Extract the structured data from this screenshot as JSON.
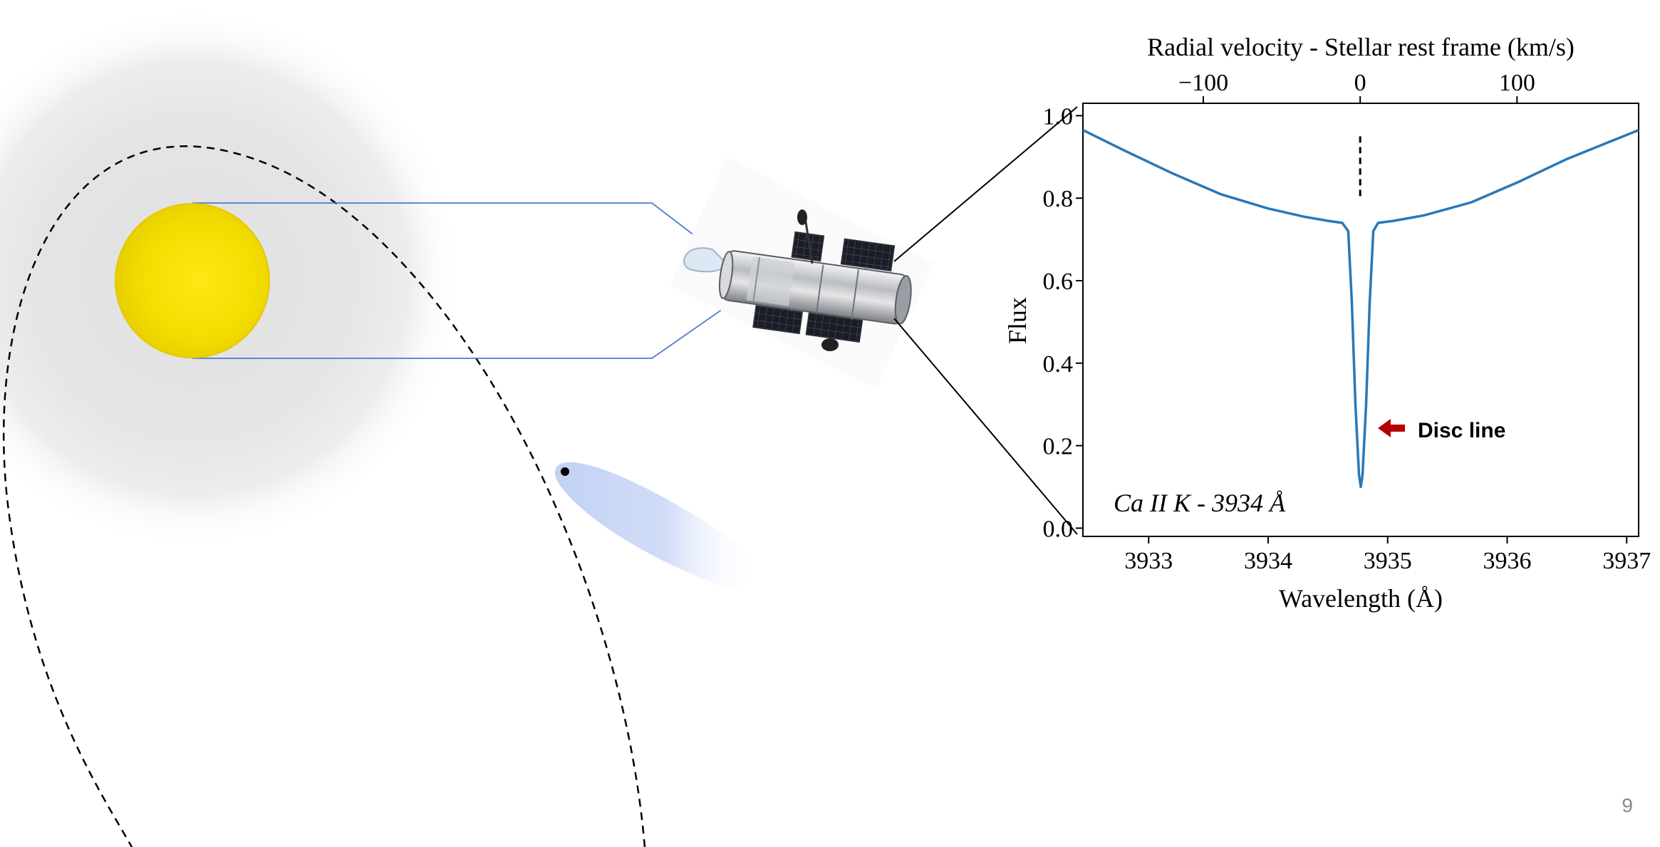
{
  "slide": {
    "page_number": "9"
  },
  "chart_data": {
    "type": "line",
    "xlabel": "Wavelength (Å)",
    "ylabel": "Flux",
    "top_axis_label": "Radial velocity - Stellar rest frame (km/s)",
    "xlim": [
      3932.45,
      3937.1
    ],
    "ylim": [
      -0.02,
      1.03
    ],
    "x_ticks": [
      3933,
      3934,
      3935,
      3936,
      3937
    ],
    "y_ticks": [
      0.0,
      0.2,
      0.4,
      0.6,
      0.8,
      1.0
    ],
    "y_tick_labels": [
      "0.0",
      "0.2",
      "0.4",
      "0.6",
      "0.8",
      "1.0"
    ],
    "top_ticks_kms": [
      -100,
      0,
      100
    ],
    "top_tick_labels": [
      "−100",
      "0",
      "100"
    ],
    "annotation_text": "Ca II K - 3934 Å",
    "arrow_label": "Disc line",
    "stellar_rest_wavelength": 3934.77,
    "series": [
      {
        "color": "#2878b8",
        "x": [
          3932.45,
          3932.8,
          3933.2,
          3933.6,
          3934.0,
          3934.3,
          3934.5,
          3934.62,
          3934.67,
          3934.7,
          3934.73,
          3934.76,
          3934.775,
          3934.79,
          3934.82,
          3934.85,
          3934.88,
          3934.92,
          3935.05,
          3935.3,
          3935.7,
          3936.1,
          3936.5,
          3936.8,
          3937.1
        ],
        "y": [
          0.965,
          0.915,
          0.86,
          0.81,
          0.775,
          0.755,
          0.745,
          0.74,
          0.72,
          0.55,
          0.3,
          0.13,
          0.1,
          0.13,
          0.3,
          0.55,
          0.72,
          0.74,
          0.745,
          0.758,
          0.79,
          0.84,
          0.895,
          0.93,
          0.965
        ]
      }
    ],
    "rest_marker_y": [
      0.8,
      0.95
    ],
    "colors": {
      "axis": "#000000",
      "arrow": "#b40000",
      "rest_marker": "#000000"
    }
  },
  "diagram": {
    "star_color": "#f1dd00",
    "halo_color": "#e2e2e2",
    "beam_color": "#4a7cc9",
    "comet_color": "#b7c8f2",
    "orbit_style": "dashed",
    "telescope_icon": "space-telescope-icon"
  }
}
